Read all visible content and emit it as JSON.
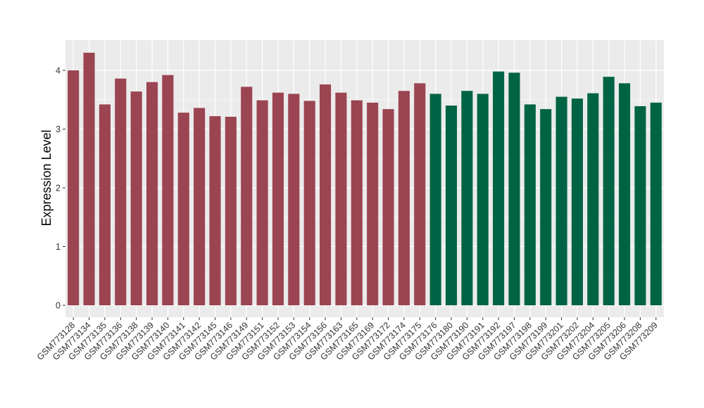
{
  "chart_data": {
    "type": "bar",
    "title": "",
    "xlabel": "",
    "ylabel": "Expression Level",
    "ylim": [
      -0.2,
      4.5
    ],
    "yticks": [
      0,
      1,
      2,
      3,
      4
    ],
    "grid": true,
    "legend": "none",
    "categories": [
      "GSM773128",
      "GSM773134",
      "GSM773135",
      "GSM773136",
      "GSM773138",
      "GSM773139",
      "GSM773140",
      "GSM773141",
      "GSM773142",
      "GSM773145",
      "GSM773146",
      "GSM773149",
      "GSM773151",
      "GSM773152",
      "GSM773153",
      "GSM773154",
      "GSM773156",
      "GSM773163",
      "GSM773165",
      "GSM773169",
      "GSM773172",
      "GSM773174",
      "GSM773175",
      "GSM773176",
      "GSM773180",
      "GSM773190",
      "GSM773191",
      "GSM773192",
      "GSM773197",
      "GSM773198",
      "GSM773199",
      "GSM773201",
      "GSM773202",
      "GSM773204",
      "GSM773205",
      "GSM773206",
      "GSM773208",
      "GSM773209"
    ],
    "values": [
      4.0,
      4.3,
      3.42,
      3.86,
      3.64,
      3.8,
      3.92,
      3.28,
      3.36,
      3.22,
      3.21,
      3.72,
      3.49,
      3.62,
      3.6,
      3.48,
      3.76,
      3.62,
      3.49,
      3.45,
      3.34,
      3.65,
      3.78,
      3.6,
      3.4,
      3.65,
      3.6,
      3.98,
      3.96,
      3.42,
      3.34,
      3.55,
      3.52,
      3.61,
      3.89,
      3.78,
      3.39,
      3.45
    ],
    "group_split_index": 23,
    "colors": {
      "group1": "#9B4452",
      "group2": "#006444",
      "panel": "#EBEBEB",
      "grid": "#FFFFFF"
    }
  }
}
